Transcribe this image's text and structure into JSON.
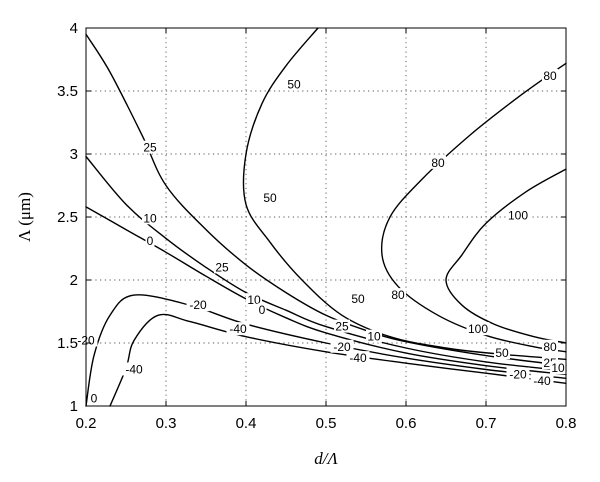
{
  "chart_data": {
    "type": "contour",
    "title": "",
    "xlabel": "d/Λ",
    "ylabel": "Λ (μm)",
    "xlim": [
      0.2,
      0.8
    ],
    "ylim": [
      1,
      4
    ],
    "xticks": [
      "0.2",
      "0.3",
      "0.4",
      "0.5",
      "0.6",
      "0.7",
      "0.8"
    ],
    "yticks": [
      "1",
      "1.5",
      "2",
      "2.5",
      "3",
      "3.5",
      "4"
    ],
    "grid": true,
    "contours": [
      {
        "level": "-40",
        "points": [
          [
            0.23,
            1.0
          ],
          [
            0.25,
            1.3
          ],
          [
            0.26,
            1.52
          ],
          [
            0.29,
            1.72
          ],
          [
            0.33,
            1.67
          ],
          [
            0.4,
            1.55
          ],
          [
            0.5,
            1.43
          ],
          [
            0.6,
            1.34
          ],
          [
            0.7,
            1.26
          ],
          [
            0.8,
            1.18
          ]
        ]
      },
      {
        "level": "-20",
        "points": [
          [
            0.2,
            1.0
          ],
          [
            0.21,
            1.4
          ],
          [
            0.23,
            1.72
          ],
          [
            0.26,
            1.88
          ],
          [
            0.33,
            1.8
          ],
          [
            0.4,
            1.65
          ],
          [
            0.5,
            1.5
          ],
          [
            0.6,
            1.38
          ],
          [
            0.7,
            1.29
          ],
          [
            0.8,
            1.22
          ]
        ]
      },
      {
        "level": "0",
        "points": [
          [
            0.2,
            2.58
          ],
          [
            0.25,
            2.4
          ],
          [
            0.3,
            2.22
          ],
          [
            0.35,
            2.03
          ],
          [
            0.4,
            1.85
          ],
          [
            0.45,
            1.7
          ],
          [
            0.5,
            1.58
          ],
          [
            0.6,
            1.42
          ],
          [
            0.7,
            1.32
          ],
          [
            0.8,
            1.25
          ]
        ]
      },
      {
        "level": "10",
        "points": [
          [
            0.2,
            2.98
          ],
          [
            0.25,
            2.6
          ],
          [
            0.3,
            2.33
          ],
          [
            0.35,
            2.1
          ],
          [
            0.4,
            1.9
          ],
          [
            0.45,
            1.76
          ],
          [
            0.5,
            1.63
          ],
          [
            0.6,
            1.46
          ],
          [
            0.7,
            1.35
          ],
          [
            0.8,
            1.28
          ]
        ]
      },
      {
        "level": "25",
        "points": [
          [
            0.2,
            3.95
          ],
          [
            0.23,
            3.65
          ],
          [
            0.27,
            3.15
          ],
          [
            0.3,
            2.75
          ],
          [
            0.35,
            2.4
          ],
          [
            0.4,
            2.12
          ],
          [
            0.45,
            1.9
          ],
          [
            0.5,
            1.72
          ],
          [
            0.55,
            1.6
          ],
          [
            0.6,
            1.51
          ],
          [
            0.7,
            1.4
          ],
          [
            0.8,
            1.32
          ]
        ]
      },
      {
        "level": "50",
        "points": [
          [
            0.49,
            4.0
          ],
          [
            0.45,
            3.7
          ],
          [
            0.42,
            3.4
          ],
          [
            0.4,
            3.0
          ],
          [
            0.4,
            2.6
          ],
          [
            0.43,
            2.3
          ],
          [
            0.47,
            2.0
          ],
          [
            0.52,
            1.72
          ],
          [
            0.58,
            1.55
          ],
          [
            0.65,
            1.46
          ],
          [
            0.72,
            1.41
          ],
          [
            0.8,
            1.37
          ]
        ]
      },
      {
        "level": "80",
        "points": [
          [
            0.8,
            3.72
          ],
          [
            0.74,
            3.45
          ],
          [
            0.68,
            3.15
          ],
          [
            0.62,
            2.8
          ],
          [
            0.58,
            2.5
          ],
          [
            0.57,
            2.2
          ],
          [
            0.59,
            1.95
          ],
          [
            0.64,
            1.72
          ],
          [
            0.7,
            1.56
          ],
          [
            0.76,
            1.47
          ],
          [
            0.8,
            1.43
          ]
        ]
      },
      {
        "level": "100",
        "points": [
          [
            0.8,
            2.88
          ],
          [
            0.75,
            2.7
          ],
          [
            0.7,
            2.45
          ],
          [
            0.67,
            2.2
          ],
          [
            0.65,
            2.0
          ],
          [
            0.67,
            1.8
          ],
          [
            0.71,
            1.65
          ],
          [
            0.76,
            1.55
          ],
          [
            0.8,
            1.5
          ]
        ]
      }
    ],
    "contour_labels": [
      {
        "text": "50",
        "x": 0.46,
        "y": 3.55
      },
      {
        "text": "50",
        "x": 0.43,
        "y": 2.65
      },
      {
        "text": "80",
        "x": 0.78,
        "y": 3.62
      },
      {
        "text": "80",
        "x": 0.64,
        "y": 2.93
      },
      {
        "text": "80",
        "x": 0.59,
        "y": 1.88
      },
      {
        "text": "100",
        "x": 0.74,
        "y": 2.51
      },
      {
        "text": "100",
        "x": 0.69,
        "y": 1.61
      },
      {
        "text": "25",
        "x": 0.28,
        "y": 3.05
      },
      {
        "text": "25",
        "x": 0.37,
        "y": 2.1
      },
      {
        "text": "10",
        "x": 0.28,
        "y": 2.49
      },
      {
        "text": "10",
        "x": 0.41,
        "y": 1.84
      },
      {
        "text": "0",
        "x": 0.28,
        "y": 2.31
      },
      {
        "text": "0",
        "x": 0.42,
        "y": 1.76
      },
      {
        "text": "-20",
        "x": 0.34,
        "y": 1.8
      },
      {
        "text": "-20",
        "x": 0.52,
        "y": 1.47
      },
      {
        "text": "-20",
        "x": 0.2,
        "y": 1.52
      },
      {
        "text": "-40",
        "x": 0.39,
        "y": 1.61
      },
      {
        "text": "-40",
        "x": 0.54,
        "y": 1.38
      },
      {
        "text": "-40",
        "x": 0.26,
        "y": 1.29
      },
      {
        "text": "-40",
        "x": 0.77,
        "y": 1.2
      },
      {
        "text": "-20",
        "x": 0.74,
        "y": 1.25
      },
      {
        "text": "25",
        "x": 0.52,
        "y": 1.63
      },
      {
        "text": "10",
        "x": 0.56,
        "y": 1.55
      },
      {
        "text": "50",
        "x": 0.54,
        "y": 1.85
      },
      {
        "text": "50",
        "x": 0.72,
        "y": 1.42
      },
      {
        "text": "80",
        "x": 0.78,
        "y": 1.47
      },
      {
        "text": "25",
        "x": 0.78,
        "y": 1.34
      },
      {
        "text": "10",
        "x": 0.79,
        "y": 1.3
      },
      {
        "text": "0",
        "x": 0.21,
        "y": 1.06
      }
    ]
  }
}
